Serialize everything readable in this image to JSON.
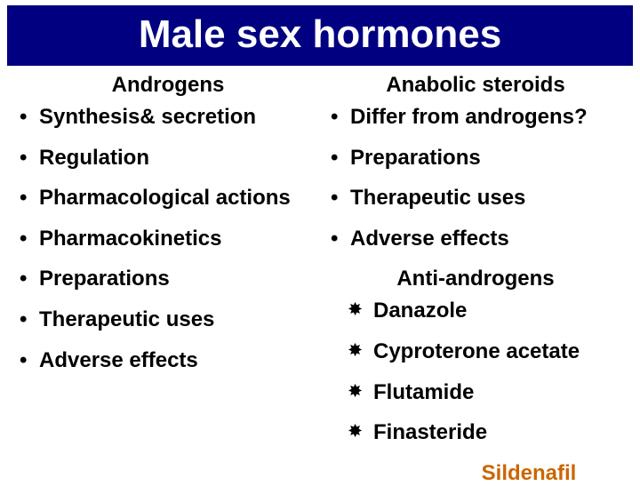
{
  "title": "Male sex hormones",
  "title_bg": "#000080",
  "title_color": "#ffffff",
  "left": {
    "heading": "Androgens",
    "items": [
      "Synthesis& secretion",
      "Regulation",
      "Pharmacological actions",
      "Pharmacokinetics",
      "Preparations",
      "Therapeutic uses",
      "Adverse effects"
    ]
  },
  "right": {
    "heading1": "Anabolic steroids",
    "items1": [
      "Differ from androgens?",
      "Preparations",
      "Therapeutic uses",
      "Adverse effects"
    ],
    "heading2": "Anti-androgens",
    "items2": [
      "Danazole",
      "Cyproterone acetate",
      "Flutamide",
      "Finasteride"
    ],
    "footer": "Sildenafil",
    "footer_color": "#cc6600"
  },
  "text_color": "#000000",
  "background": "#ffffff",
  "body_fontsize": 24,
  "title_fontsize": 44
}
